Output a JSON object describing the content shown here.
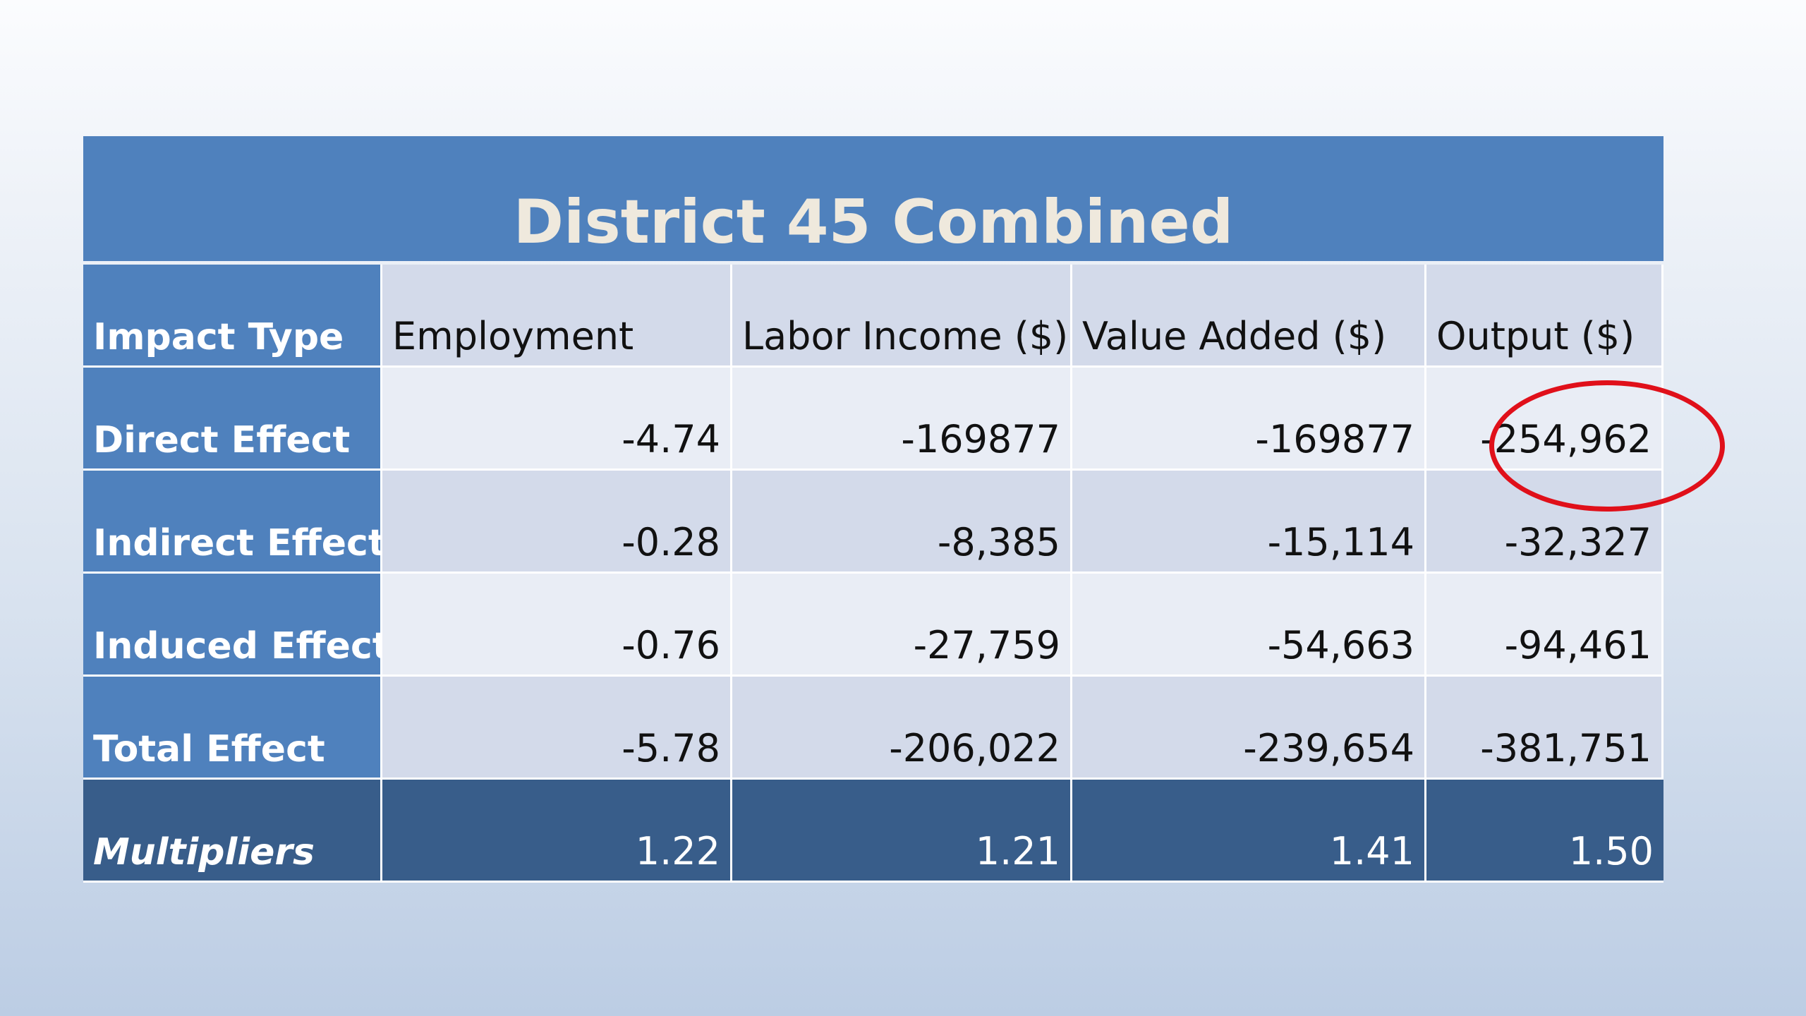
{
  "table": {
    "title": "District 45 Combined",
    "headers": [
      "Impact Type",
      "Employment",
      "Labor Income ($)",
      "Value Added ($)",
      "Output ($)"
    ],
    "rows": [
      {
        "label": "Direct Effect",
        "values": [
          "-4.74",
          "-169877",
          "-169877",
          "-254,962"
        ]
      },
      {
        "label": "Indirect Effect",
        "values": [
          "-0.28",
          "-8,385",
          "-15,114",
          "-32,327"
        ]
      },
      {
        "label": "Induced Effect",
        "values": [
          "-0.76",
          "-27,759",
          "-54,663",
          "-94,461"
        ]
      },
      {
        "label": "Total Effect",
        "values": [
          "-5.78",
          "-206,022",
          "-239,654",
          "-381,751"
        ]
      }
    ],
    "multipliers": {
      "label": "Multipliers",
      "values": [
        "1.22",
        "1.21",
        "1.41",
        "1.50"
      ]
    }
  },
  "colors": {
    "header_blue": "#4f81bd",
    "multiplier_blue": "#385d8a",
    "highlight_red": "#e0101a"
  },
  "annotation": {
    "highlight_icon": "red-ellipse-annotation"
  }
}
